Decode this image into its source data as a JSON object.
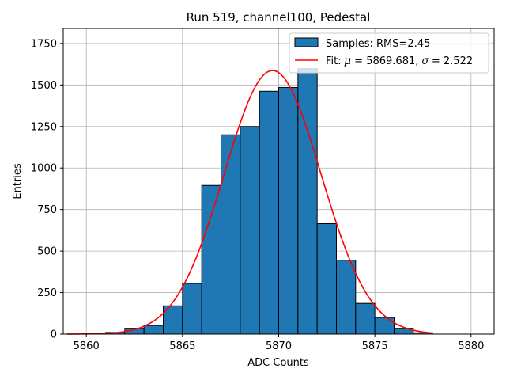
{
  "chart_data": {
    "type": "bar",
    "title": "Run 519, channel100, Pedestal",
    "xlabel": "ADC Counts",
    "ylabel": "Entries",
    "xlim": [
      5858.8,
      5881.2
    ],
    "ylim": [
      0,
      1840
    ],
    "xticks": [
      5860,
      5865,
      5870,
      5875,
      5880
    ],
    "yticks": [
      0,
      250,
      500,
      750,
      1000,
      1250,
      1500,
      1750
    ],
    "grid": true,
    "legend_position": "top-right",
    "histogram": {
      "name": "Samples: RMS=2.45",
      "color": "#1f77b4",
      "edge_color": "#000000",
      "bin_edges": [
        5859,
        5860,
        5861,
        5862,
        5863,
        5864,
        5865,
        5866,
        5867,
        5868,
        5869,
        5870,
        5871,
        5872,
        5873,
        5874,
        5875,
        5876,
        5877,
        5878
      ],
      "counts": [
        0,
        1,
        10,
        35,
        52,
        170,
        305,
        895,
        1200,
        1250,
        1462,
        1485,
        1598,
        665,
        445,
        185,
        100,
        35,
        8
      ]
    },
    "fit": {
      "label_prefix": "Fit: ",
      "mu_symbol": "μ",
      "mu_value": " = 5869.681, ",
      "sigma_symbol": "σ",
      "sigma_value": " = 2.522",
      "mu": 5869.681,
      "sigma": 2.522,
      "amplitude": 1587,
      "x_range": [
        5859,
        5878
      ],
      "color": "#ff0000"
    }
  }
}
